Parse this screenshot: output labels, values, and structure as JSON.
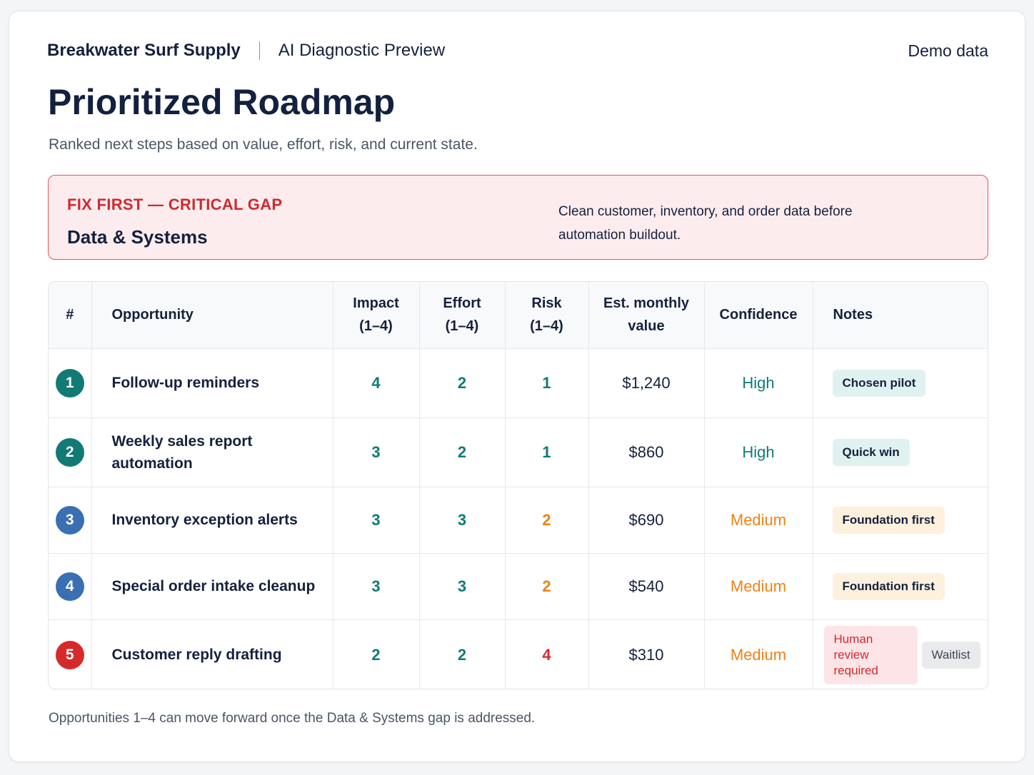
{
  "header": {
    "brand": "Breakwater Surf Supply",
    "product": "AI Diagnostic Preview",
    "demo_label": "Demo data"
  },
  "page": {
    "title": "Prioritized Roadmap",
    "subtitle": "Ranked next steps based on value, effort, risk, and current state."
  },
  "alert": {
    "kicker": "FIX FIRST — CRITICAL GAP",
    "title": "Data & Systems",
    "text": "Clean customer, inventory, and order data before automation buildout."
  },
  "table": {
    "columns": {
      "rank": "#",
      "opportunity": "Opportunity",
      "impact_l1": "Impact",
      "impact_l2": "(1–4)",
      "effort_l1": "Effort",
      "effort_l2": "(1–4)",
      "risk_l1": "Risk",
      "risk_l2": "(1–4)",
      "value_l1": "Est. monthly",
      "value_l2": "value",
      "confidence": "Confidence",
      "notes": "Notes"
    },
    "rows": [
      {
        "rank": "1",
        "opportunity": "Follow-up reminders",
        "impact": "4",
        "effort": "2",
        "risk": "1",
        "value": "$1,240",
        "confidence": "High",
        "notes": [
          "Chosen pilot"
        ]
      },
      {
        "rank": "2",
        "opportunity": "Weekly sales report automation",
        "impact": "3",
        "effort": "2",
        "risk": "1",
        "value": "$860",
        "confidence": "High",
        "notes": [
          "Quick win"
        ]
      },
      {
        "rank": "3",
        "opportunity": "Inventory exception alerts",
        "impact": "3",
        "effort": "3",
        "risk": "2",
        "value": "$690",
        "confidence": "Medium",
        "notes": [
          "Foundation first"
        ]
      },
      {
        "rank": "4",
        "opportunity": "Special order intake cleanup",
        "impact": "3",
        "effort": "3",
        "risk": "2",
        "value": "$540",
        "confidence": "Medium",
        "notes": [
          "Foundation first"
        ]
      },
      {
        "rank": "5",
        "opportunity": "Customer reply drafting",
        "impact": "2",
        "effort": "2",
        "risk": "4",
        "value": "$310",
        "confidence": "Medium",
        "notes": [
          "Human review required",
          "Waitlist"
        ]
      }
    ]
  },
  "colors": {
    "rank_1": "#117a75",
    "rank_2": "#117a75",
    "rank_3": "#3a6fb3",
    "rank_4": "#3a6fb3",
    "rank_5": "#d62a2a",
    "teal": "#117a75",
    "orange": "#ee8214",
    "red": "#d62a2a"
  },
  "footer": {
    "note": "Opportunities 1–4 can move forward once the Data & Systems gap is addressed."
  }
}
